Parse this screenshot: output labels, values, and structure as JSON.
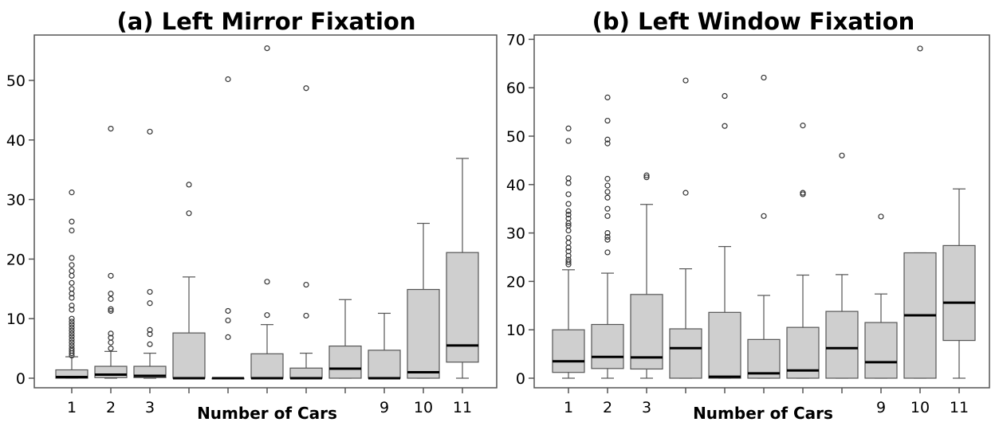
{
  "chart_data": [
    {
      "type": "box",
      "title": "(a) Left Mirror Fixation",
      "xlabel": "Number of Cars",
      "ylabel": "",
      "ylim": [
        0,
        57
      ],
      "yticks": [
        0,
        10,
        20,
        30,
        40,
        50
      ],
      "categories": [
        "1",
        "2",
        "3",
        "",
        "",
        "",
        "",
        "",
        "9",
        "10",
        "11"
      ],
      "boxes": [
        {
          "q1": 0,
          "median": 0.2,
          "q3": 1.4,
          "whisker_low": 0,
          "whisker_high": 3.6,
          "outliers": [
            3.8,
            4.2,
            4.6,
            5.0,
            5.5,
            6.0,
            6.5,
            7.0,
            7.5,
            8.0,
            8.5,
            9.0,
            9.5,
            10.0,
            11.5,
            12.2,
            13.5,
            14.2,
            15.0,
            16.0,
            17.2,
            18.0,
            19.0,
            20.2,
            24.8,
            26.3,
            31.2
          ]
        },
        {
          "q1": 0.1,
          "median": 0.6,
          "q3": 2.0,
          "whisker_low": 0,
          "whisker_high": 4.5,
          "outliers": [
            5.0,
            6.0,
            6.8,
            7.5,
            11.3,
            11.6,
            13.3,
            14.2,
            17.2,
            41.9
          ]
        },
        {
          "q1": 0.1,
          "median": 0.4,
          "q3": 2.0,
          "whisker_low": 0,
          "whisker_high": 4.2,
          "outliers": [
            5.7,
            7.4,
            8.1,
            12.6,
            14.5,
            41.4
          ]
        },
        {
          "q1": 0,
          "median": 0,
          "q3": 7.6,
          "whisker_low": 0,
          "whisker_high": 17.0,
          "outliers": [
            27.7,
            32.5
          ]
        },
        {
          "q1": 0,
          "median": 0,
          "q3": 0,
          "whisker_low": 0,
          "whisker_high": 0,
          "outliers": [
            6.9,
            9.7,
            11.3,
            50.2
          ]
        },
        {
          "q1": 0,
          "median": 0,
          "q3": 4.1,
          "whisker_low": 0,
          "whisker_high": 9.0,
          "outliers": [
            10.6,
            16.2,
            55.4
          ]
        },
        {
          "q1": 0,
          "median": 0,
          "q3": 1.7,
          "whisker_low": 0,
          "whisker_high": 4.2,
          "outliers": [
            10.5,
            15.7,
            48.7
          ]
        },
        {
          "q1": 0,
          "median": 1.6,
          "q3": 5.4,
          "whisker_low": 0,
          "whisker_high": 13.2,
          "outliers": []
        },
        {
          "q1": 0,
          "median": 0,
          "q3": 4.7,
          "whisker_low": 0,
          "whisker_high": 10.9,
          "outliers": []
        },
        {
          "q1": 0,
          "median": 1.0,
          "q3": 14.9,
          "whisker_low": 0,
          "whisker_high": 26.0,
          "outliers": []
        },
        {
          "q1": 2.7,
          "median": 5.5,
          "q3": 21.1,
          "whisker_low": 0,
          "whisker_high": 36.9,
          "outliers": []
        }
      ],
      "grid": false
    },
    {
      "type": "box",
      "title": "(b) Left Window Fixation",
      "xlabel": "Number of Cars",
      "ylabel": "",
      "ylim": [
        0,
        70
      ],
      "yticks": [
        0,
        10,
        20,
        30,
        40,
        50,
        60,
        70
      ],
      "categories": [
        "1",
        "2",
        "3",
        "",
        "",
        "",
        "",
        "",
        "9",
        "10",
        "11"
      ],
      "boxes": [
        {
          "q1": 1.2,
          "median": 3.5,
          "q3": 10.0,
          "whisker_low": 0,
          "whisker_high": 22.4,
          "outliers": [
            23.5,
            24.0,
            24.5,
            25.3,
            26.2,
            27.0,
            28.0,
            29.0,
            30.5,
            31.5,
            32.0,
            33.0,
            33.8,
            34.5,
            36.0,
            38.0,
            40.3,
            41.3,
            49.0,
            51.6
          ]
        },
        {
          "q1": 2.0,
          "median": 4.4,
          "q3": 11.1,
          "whisker_low": 0,
          "whisker_high": 21.7,
          "outliers": [
            26.0,
            28.6,
            29.2,
            30.0,
            33.5,
            35.0,
            37.3,
            38.5,
            39.8,
            41.2,
            48.5,
            49.3,
            53.2,
            58.0
          ]
        },
        {
          "q1": 1.9,
          "median": 4.3,
          "q3": 17.3,
          "whisker_low": 0,
          "whisker_high": 35.9,
          "outliers": [
            41.5,
            41.9
          ]
        },
        {
          "q1": 0,
          "median": 6.2,
          "q3": 10.2,
          "whisker_low": 0,
          "whisker_high": 22.6,
          "outliers": [
            38.3,
            61.5
          ]
        },
        {
          "q1": 0,
          "median": 0.3,
          "q3": 13.6,
          "whisker_low": 0,
          "whisker_high": 27.2,
          "outliers": [
            52.1,
            58.3
          ]
        },
        {
          "q1": 0,
          "median": 1.0,
          "q3": 8.0,
          "whisker_low": 0,
          "whisker_high": 17.1,
          "outliers": [
            33.5,
            62.1
          ]
        },
        {
          "q1": 0,
          "median": 1.6,
          "q3": 10.5,
          "whisker_low": 0,
          "whisker_high": 21.3,
          "outliers": [
            38.0,
            38.3,
            52.2
          ]
        },
        {
          "q1": 0,
          "median": 6.2,
          "q3": 13.8,
          "whisker_low": 0,
          "whisker_high": 21.4,
          "outliers": [
            46.0
          ]
        },
        {
          "q1": 0,
          "median": 3.3,
          "q3": 11.5,
          "whisker_low": 0,
          "whisker_high": 17.4,
          "outliers": [
            33.4
          ]
        },
        {
          "q1": 0,
          "median": 13.0,
          "q3": 25.9,
          "whisker_low": 0,
          "whisker_high": 25.9,
          "outliers": [
            68.1
          ]
        },
        {
          "q1": 7.8,
          "median": 15.6,
          "q3": 27.4,
          "whisker_low": 0,
          "whisker_high": 39.1,
          "outliers": []
        }
      ],
      "grid": false
    }
  ],
  "colors": {
    "box_fill": "#cfcfcf",
    "box_stroke": "#555555",
    "median": "#000000",
    "axis": "#555555",
    "outlier": "#333333"
  }
}
